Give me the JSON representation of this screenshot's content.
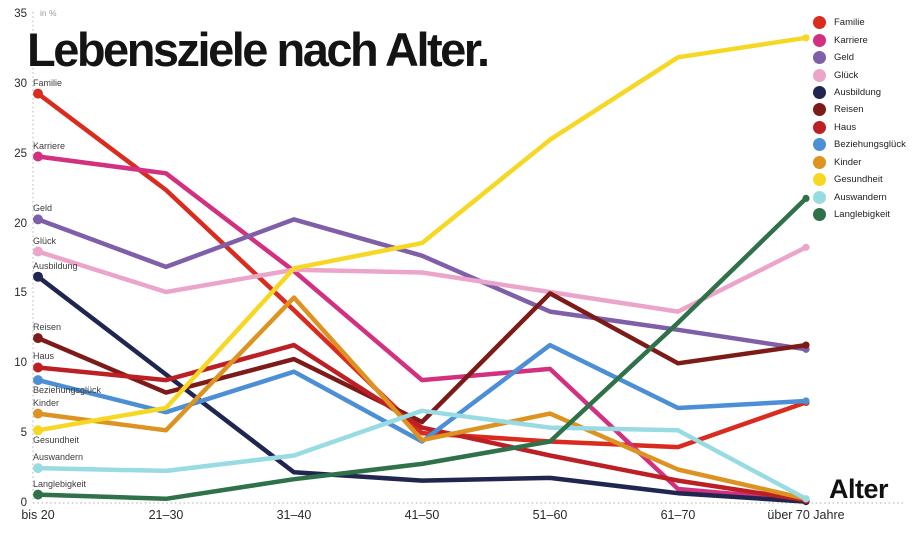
{
  "title": "Lebensziele nach Alter.",
  "unit_label": "in %",
  "x_axis_title": "Alter",
  "axis": {
    "y_ticks": [
      0,
      5,
      10,
      15,
      20,
      25,
      30,
      35
    ],
    "x_labels": [
      "bis 20",
      "21–30",
      "31–40",
      "41–50",
      "51–60",
      "61–70",
      "über 70 Jahre"
    ]
  },
  "chart_data": {
    "type": "line",
    "title": "Lebensziele nach Alter.",
    "ylabel": "in %",
    "xlabel": "Alter",
    "ylim": [
      0,
      35
    ],
    "grid": false,
    "legend_position": "top-right",
    "categories": [
      "bis 20",
      "21–30",
      "31–40",
      "41–50",
      "51–60",
      "61–70",
      "über 70 Jahre"
    ],
    "series": [
      {
        "name": "Familie",
        "color": "#d92b1e",
        "values": [
          29.3,
          22.4,
          13.8,
          5.0,
          4.4,
          4.0,
          7.2
        ],
        "label_pos": "above"
      },
      {
        "name": "Karriere",
        "color": "#d23180",
        "values": [
          24.8,
          23.6,
          16.6,
          8.8,
          9.6,
          1.0,
          0.2
        ],
        "label_pos": "above"
      },
      {
        "name": "Geld",
        "color": "#7e5fa8",
        "values": [
          20.3,
          16.9,
          20.3,
          17.7,
          13.7,
          12.4,
          11.0
        ],
        "label_pos": "above"
      },
      {
        "name": "Glück",
        "color": "#eca5ca",
        "values": [
          18.0,
          15.1,
          16.7,
          16.5,
          15.1,
          13.7,
          18.3
        ],
        "label_pos": "above"
      },
      {
        "name": "Ausbildung",
        "color": "#20264f",
        "values": [
          16.2,
          9.2,
          2.2,
          1.6,
          1.8,
          0.7,
          0.1
        ],
        "label_pos": "above"
      },
      {
        "name": "Reisen",
        "color": "#7c1b17",
        "values": [
          11.8,
          7.9,
          10.3,
          5.8,
          15.0,
          10.0,
          11.3
        ],
        "label_pos": "above"
      },
      {
        "name": "Haus",
        "color": "#bc2025",
        "values": [
          9.7,
          8.8,
          11.3,
          5.4,
          3.4,
          1.6,
          0.2
        ],
        "label_pos": "above"
      },
      {
        "name": "Beziehungsglück",
        "color": "#4d8fd5",
        "values": [
          8.8,
          6.5,
          9.4,
          4.4,
          11.3,
          6.8,
          7.3
        ],
        "label_pos": "below"
      },
      {
        "name": "Kinder",
        "color": "#dd9322",
        "values": [
          6.4,
          5.2,
          14.7,
          4.5,
          6.4,
          2.4,
          0.3
        ],
        "label_pos": "above"
      },
      {
        "name": "Gesundheit",
        "color": "#f6d824",
        "values": [
          5.2,
          6.8,
          16.8,
          18.6,
          26.0,
          31.9,
          33.3
        ],
        "label_pos": "below"
      },
      {
        "name": "Auswandern",
        "color": "#99dbe2",
        "values": [
          2.5,
          2.3,
          3.4,
          6.6,
          5.4,
          5.2,
          0.3
        ],
        "label_pos": "above"
      },
      {
        "name": "Langlebigkeit",
        "color": "#2f7249",
        "values": [
          0.6,
          0.3,
          1.7,
          2.8,
          4.4,
          12.9,
          21.8
        ],
        "label_pos": "above"
      }
    ]
  }
}
